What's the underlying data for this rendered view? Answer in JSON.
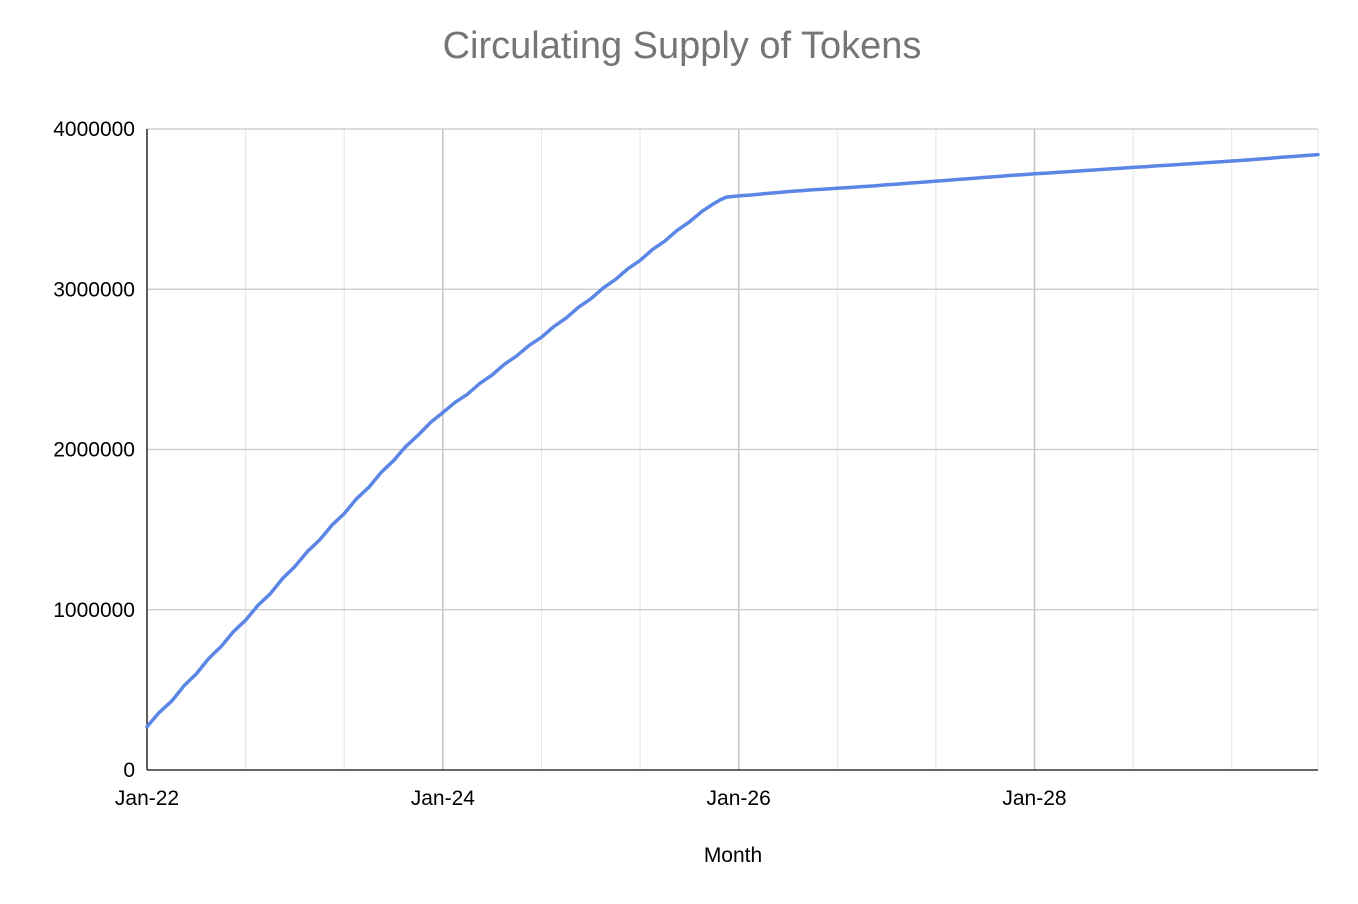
{
  "chart_data": {
    "type": "line",
    "title": "Circulating Supply of Tokens",
    "xlabel": "Month",
    "ylabel": "",
    "ylim": [
      0,
      4000000
    ],
    "y_ticks": [
      "0",
      "1000000",
      "2000000",
      "3000000",
      "4000000"
    ],
    "x_range": [
      "2022-01",
      "2029-12"
    ],
    "x_tick_labels": [
      {
        "month": "2022-01",
        "label": "Jan-22"
      },
      {
        "month": "2024-01",
        "label": "Jan-24"
      },
      {
        "month": "2026-01",
        "label": "Jan-26"
      },
      {
        "month": "2028-01",
        "label": "Jan-28"
      }
    ],
    "grid": "on",
    "legend": "none",
    "series": [
      {
        "color": "#5b86e5",
        "points": [
          [
            "2022-01",
            270000
          ],
          [
            "2022-03",
            430000
          ],
          [
            "2022-05",
            600000
          ],
          [
            "2022-07",
            770000
          ],
          [
            "2022-09",
            935000
          ],
          [
            "2022-11",
            1100000
          ],
          [
            "2023-01",
            1270000
          ],
          [
            "2023-03",
            1435000
          ],
          [
            "2023-05",
            1600000
          ],
          [
            "2023-07",
            1765000
          ],
          [
            "2023-09",
            1930000
          ],
          [
            "2023-11",
            2090000
          ],
          [
            "2024-01",
            2230000
          ],
          [
            "2024-03",
            2345000
          ],
          [
            "2024-05",
            2465000
          ],
          [
            "2024-07",
            2585000
          ],
          [
            "2024-09",
            2700000
          ],
          [
            "2024-11",
            2820000
          ],
          [
            "2025-01",
            2940000
          ],
          [
            "2025-03",
            3060000
          ],
          [
            "2025-05",
            3180000
          ],
          [
            "2025-07",
            3300000
          ],
          [
            "2025-09",
            3420000
          ],
          [
            "2025-11",
            3535000
          ],
          [
            "2025-12",
            3575000
          ],
          [
            "2026-06",
            3615000
          ],
          [
            "2026-12",
            3645000
          ],
          [
            "2027-06",
            3680000
          ],
          [
            "2027-12",
            3715000
          ],
          [
            "2028-06",
            3745000
          ],
          [
            "2028-12",
            3775000
          ],
          [
            "2029-06",
            3805000
          ],
          [
            "2029-12",
            3840000
          ]
        ]
      }
    ]
  }
}
